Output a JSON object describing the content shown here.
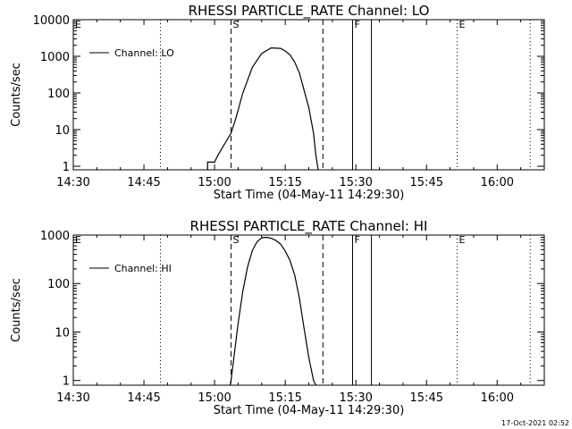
{
  "footer_timestamp": "17-Oct-2021 02:52",
  "chart_data": [
    {
      "type": "line",
      "title": "RHESSI PARTICLE_RATE Channel: LO",
      "xlabel": "Start Time (04-May-11 14:29:30)",
      "ylabel": "Counts/sec",
      "yscale": "log",
      "xlim": [
        0,
        100
      ],
      "ylim": [
        0.8,
        10000
      ],
      "x_ticks": [
        {
          "t": 0,
          "label": "14:30"
        },
        {
          "t": 15,
          "label": "14:45"
        },
        {
          "t": 30,
          "label": "15:00"
        },
        {
          "t": 45,
          "label": "15:15"
        },
        {
          "t": 60,
          "label": "15:30"
        },
        {
          "t": 75,
          "label": "15:45"
        },
        {
          "t": 90,
          "label": "16:00"
        }
      ],
      "y_ticks": [
        {
          "v": 1,
          "label": "1"
        },
        {
          "v": 10,
          "label": "10"
        },
        {
          "v": 100,
          "label": "100"
        },
        {
          "v": 1000,
          "label": "1000"
        },
        {
          "v": 10000,
          "label": "10000"
        }
      ],
      "legend": "Channel: LO",
      "markers": [
        {
          "t": 0,
          "label": "E",
          "style": "dotted"
        },
        {
          "t": 18.5,
          "label": "",
          "style": "dotted"
        },
        {
          "t": 33.5,
          "label": "S",
          "style": "dashed"
        },
        {
          "t": 53,
          "label": "",
          "style": "dashed"
        },
        {
          "t": 59.3,
          "label": "F",
          "style": "solid"
        },
        {
          "t": 63.3,
          "label": "",
          "style": "solid"
        },
        {
          "t": 81.5,
          "label": "E",
          "style": "dotted"
        },
        {
          "t": 97,
          "label": "",
          "style": "dotted"
        }
      ],
      "series": [
        {
          "x": [
            28.5,
            28.5,
            30,
            30.7,
            33.5,
            34.5,
            36,
            38,
            40,
            42,
            44,
            45,
            46,
            47,
            48,
            49,
            50,
            51,
            51.5,
            52
          ],
          "y": [
            0.8,
            1.3,
            1.3,
            2,
            8,
            20,
            100,
            500,
            1200,
            1700,
            1650,
            1400,
            1100,
            700,
            350,
            120,
            40,
            8,
            2,
            0.8
          ]
        }
      ]
    },
    {
      "type": "line",
      "title": "RHESSI PARTICLE_RATE Channel: HI",
      "xlabel": "Start Time (04-May-11 14:29:30)",
      "ylabel": "Counts/sec",
      "yscale": "log",
      "xlim": [
        0,
        100
      ],
      "ylim": [
        0.8,
        1000
      ],
      "x_ticks": [
        {
          "t": 0,
          "label": "14:30"
        },
        {
          "t": 15,
          "label": "14:45"
        },
        {
          "t": 30,
          "label": "15:00"
        },
        {
          "t": 45,
          "label": "15:15"
        },
        {
          "t": 60,
          "label": "15:30"
        },
        {
          "t": 75,
          "label": "15:45"
        },
        {
          "t": 90,
          "label": "16:00"
        }
      ],
      "y_ticks": [
        {
          "v": 1,
          "label": "1"
        },
        {
          "v": 10,
          "label": "10"
        },
        {
          "v": 100,
          "label": "100"
        },
        {
          "v": 1000,
          "label": "1000"
        }
      ],
      "legend": "Channel: HI",
      "markers": [
        {
          "t": 0,
          "label": "E",
          "style": "dotted"
        },
        {
          "t": 18.5,
          "label": "",
          "style": "dotted"
        },
        {
          "t": 33.5,
          "label": "S",
          "style": "dashed"
        },
        {
          "t": 53,
          "label": "",
          "style": "dashed"
        },
        {
          "t": 59.3,
          "label": "F",
          "style": "solid"
        },
        {
          "t": 63.3,
          "label": "",
          "style": "solid"
        },
        {
          "t": 81.5,
          "label": "E",
          "style": "dotted"
        },
        {
          "t": 97,
          "label": "",
          "style": "dotted"
        }
      ],
      "series": [
        {
          "x": [
            33.3,
            33.5,
            34,
            35,
            36,
            37,
            38,
            39,
            40,
            41,
            42,
            43,
            44,
            45,
            46,
            47,
            48,
            49,
            50,
            51,
            51.5
          ],
          "y": [
            0.8,
            1,
            2.5,
            15,
            70,
            220,
            480,
            720,
            880,
            900,
            860,
            780,
            650,
            470,
            300,
            150,
            50,
            12,
            3,
            1,
            0.8
          ]
        }
      ]
    }
  ]
}
